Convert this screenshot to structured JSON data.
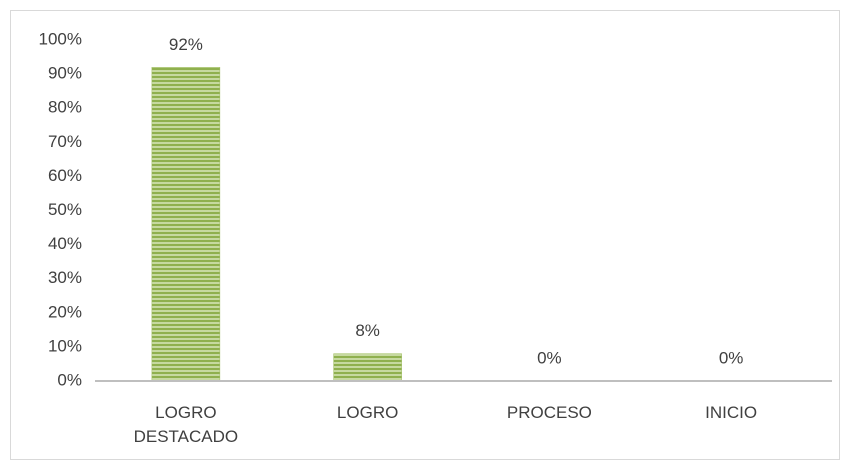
{
  "chart_data": {
    "type": "bar",
    "categories": [
      "LOGRO DESTACADO",
      "LOGRO",
      "PROCESO",
      "INICIO"
    ],
    "values": [
      92,
      8,
      0,
      0
    ],
    "value_labels": [
      "92%",
      "8%",
      "0%",
      "0%"
    ],
    "color": "#9bbb59",
    "ylim": [
      0,
      100
    ],
    "yticks": [
      {
        "value": 0,
        "label": "0%"
      },
      {
        "value": 10,
        "label": "10%"
      },
      {
        "value": 20,
        "label": "20%"
      },
      {
        "value": 30,
        "label": "30%"
      },
      {
        "value": 40,
        "label": "40%"
      },
      {
        "value": 50,
        "label": "50%"
      },
      {
        "value": 60,
        "label": "60%"
      },
      {
        "value": 70,
        "label": "70%"
      },
      {
        "value": 80,
        "label": "80%"
      },
      {
        "value": 90,
        "label": "90%"
      },
      {
        "value": 100,
        "label": "100%"
      }
    ],
    "grid": false
  }
}
